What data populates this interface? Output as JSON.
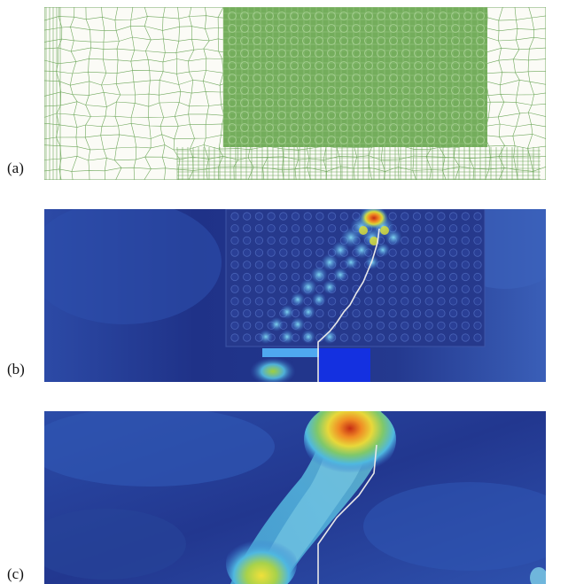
{
  "panels": [
    {
      "label": "(a)",
      "content": "mesh"
    },
    {
      "label": "(b)",
      "content": "stress-field-with-pores"
    },
    {
      "label": "(c)",
      "content": "stress-field-zoom"
    }
  ],
  "colors": {
    "mesh_line": "#4f9a3c",
    "mesh_dense": "#6aa856",
    "field_low": "#1d2f85",
    "field_mid": "#3f8be0",
    "field_high": "#f4d33a",
    "field_peak": "#c62d14",
    "crack_path": "#e8e8e8"
  }
}
